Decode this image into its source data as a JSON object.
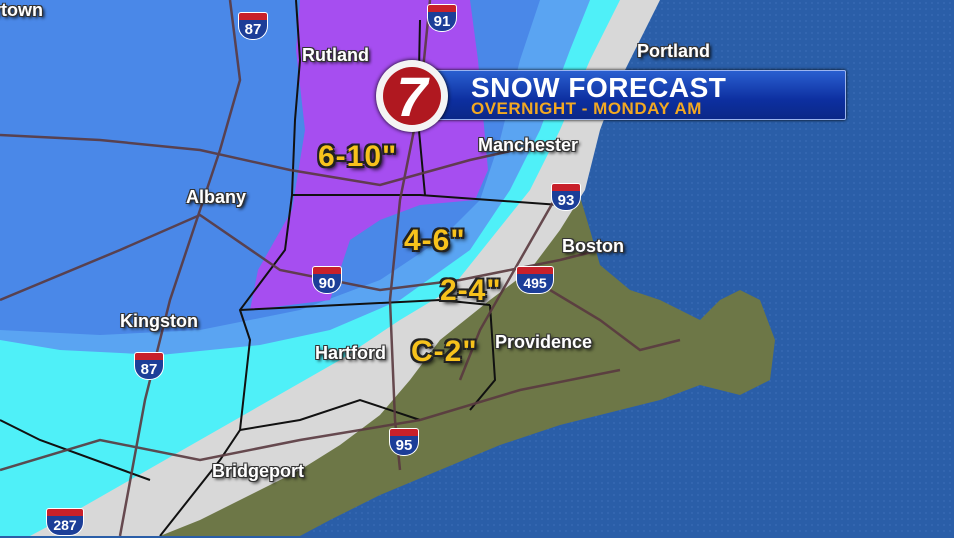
{
  "header": {
    "title": "SNOW FORECAST",
    "subtitle": "OVERNIGHT - MONDAY AM",
    "logo_text": "7"
  },
  "cities": [
    {
      "name": "rtown"
    },
    {
      "name": "Rutland"
    },
    {
      "name": "Portland"
    },
    {
      "name": "Manchester"
    },
    {
      "name": "Albany"
    },
    {
      "name": "Boston"
    },
    {
      "name": "Kingston"
    },
    {
      "name": "Hartford"
    },
    {
      "name": "Providence"
    },
    {
      "name": "Bridgeport"
    }
  ],
  "snow_amounts": [
    {
      "label": "6-10\"",
      "color": "#a64ef0"
    },
    {
      "label": "4-6\"",
      "color": "#4a88e8"
    },
    {
      "label": "2-4\"",
      "color": "#4ff0f8"
    },
    {
      "label": "C-2\"",
      "color": "#d8d8d8"
    }
  ],
  "interstates": [
    "87",
    "91",
    "93",
    "90",
    "495",
    "87",
    "95",
    "287"
  ],
  "colors": {
    "ocean": "#2a5ea8",
    "land": "#6b7a45",
    "label_amount": "#f7c21c",
    "banner": "#0d2fa0",
    "logo_red": "#b01820"
  }
}
